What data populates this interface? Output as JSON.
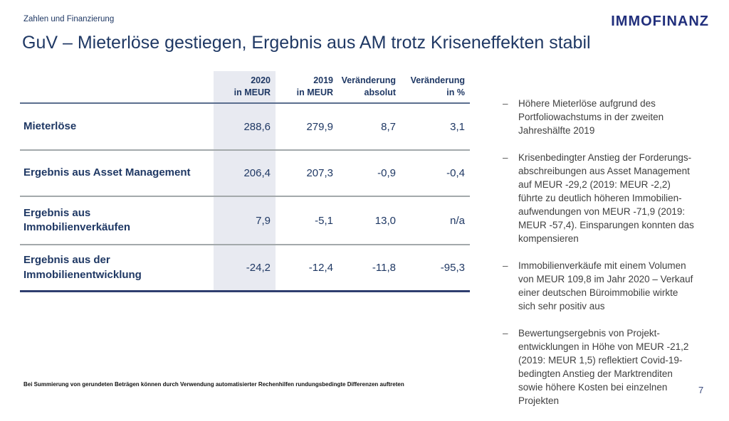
{
  "page": {
    "eyebrow": "Zahlen und Finanzierung",
    "title": "GuV – Mieterlöse gestiegen, Ergebnis aus AM trotz Kriseneffekten stabil",
    "logo": "IMMOFINANZ",
    "footnote": "Bei Summierung von gerundeten Beträgen können durch Verwendung automatisierter Rechenhilfen rundungsbedingte Differenzen auftreten",
    "page_number": "7"
  },
  "colors": {
    "navy_text": "#1F3864",
    "logo_navy": "#212F7C",
    "column_highlight": "#E8EAF1",
    "header_rule": "#5B6E8E",
    "row_rule": "#A3A9AB",
    "bottom_rule": "#2F3E6F",
    "bullet_text": "#404040"
  },
  "table": {
    "columns": [
      {
        "text": "2020\nin MEUR"
      },
      {
        "text": "2019\nin MEUR"
      },
      {
        "text": "Veränderung\nabsolut"
      },
      {
        "text": "Veränderung\nin %"
      }
    ],
    "rows": [
      {
        "label": "Mieterlöse",
        "v2020": "288,6",
        "v2019": "279,9",
        "abs": "8,7",
        "pct": "3,1"
      },
      {
        "label": "Ergebnis aus Asset Management",
        "v2020": "206,4",
        "v2019": "207,3",
        "abs": "-0,9",
        "pct": "-0,4"
      },
      {
        "label": "Ergebnis aus\nImmobilienverkäufen",
        "v2020": "7,9",
        "v2019": "-5,1",
        "abs": "13,0",
        "pct": "n/a"
      },
      {
        "label": "Ergebnis aus der\nImmobilienentwicklung",
        "v2020": "-24,2",
        "v2019": "-12,4",
        "abs": "-11,8",
        "pct": "-95,3"
      }
    ]
  },
  "bullets": {
    "marker": "–",
    "items": [
      {
        "text": "Höhere Mieterlöse aufgrund des\nPortfoliowachstums in der zweiten\nJahreshälfte 2019"
      },
      {
        "text": "Krisenbedingter Anstieg der Forderungs-\nabschreibungen aus Asset Management\nauf MEUR -29,2 (2019: MEUR -2,2)\nführte zu deutlich höheren Immobilien-\naufwendungen von MEUR -71,9 (2019:\nMEUR -57,4). Einsparungen konnten das\nkompensieren"
      },
      {
        "text": "Immobilienverkäufe mit einem Volumen\nvon MEUR 109,8 im Jahr 2020 – Verkauf\neiner deutschen Büroimmobilie wirkte\nsich sehr positiv aus"
      },
      {
        "text": "Bewertungsergebnis von Projekt-\nentwicklungen in Höhe von MEUR -21,2\n(2019: MEUR 1,5) reflektiert Covid-19-\nbedingten Anstieg der Marktrenditen\nsowie höhere Kosten bei einzelnen\nProjekten"
      }
    ]
  }
}
